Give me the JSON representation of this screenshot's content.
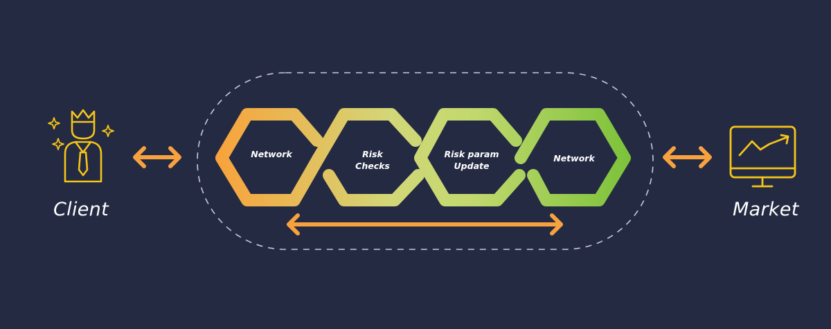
{
  "endpoints": {
    "client": {
      "label": "Client"
    },
    "market": {
      "label": "Market"
    }
  },
  "stages": [
    {
      "line1": "Network",
      "line2": ""
    },
    {
      "line1": "Risk",
      "line2": "Checks"
    },
    {
      "line1": "Risk param",
      "line2": "Update"
    },
    {
      "line1": "Network",
      "line2": ""
    }
  ],
  "colors": {
    "background": "#242a42",
    "accent": "#f7a23e",
    "icon": "#f5c518",
    "gradient_start": "#f8a33c",
    "gradient_mid": "#c9d97a",
    "gradient_end": "#7fc23a",
    "dashed_border": "#c8cbd6"
  },
  "icons": {
    "client": "businessman-with-crown-icon",
    "market": "monitor-chart-icon"
  }
}
